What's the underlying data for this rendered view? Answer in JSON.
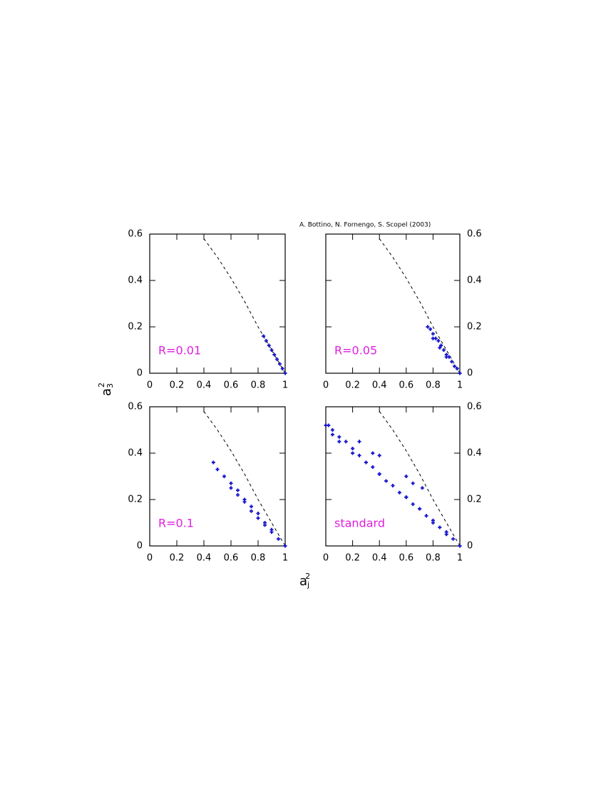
{
  "credit": "A. Bottino, N. Fornengo, S. Scopel (2003)",
  "x_label": {
    "text": "a",
    "sub": "j",
    "sup": "2"
  },
  "y_label": {
    "text": "a",
    "sub": "3",
    "sup": "2"
  },
  "chart_data": [
    {
      "type": "scatter",
      "annotation": "R=0.01",
      "color": "#1a1acc",
      "annotation_color": "#e020e0",
      "y_axis_side": "left",
      "xlim": [
        0,
        1
      ],
      "ylim": [
        0,
        0.6
      ],
      "xticks": [
        0,
        0.2,
        0.4,
        0.6,
        0.8,
        1
      ],
      "yticks": [
        0,
        0.2,
        0.4,
        0.6
      ],
      "x": [
        0.84,
        0.86,
        0.88,
        0.9,
        0.92,
        0.94,
        0.96,
        0.98,
        1.0
      ],
      "y": [
        0.16,
        0.14,
        0.12,
        0.1,
        0.08,
        0.06,
        0.04,
        0.02,
        0.0
      ],
      "curve": {
        "x": [
          0.4,
          0.5,
          0.6,
          0.7,
          0.8,
          0.85,
          0.9,
          0.95,
          1.0
        ],
        "y": [
          0.58,
          0.5,
          0.41,
          0.31,
          0.2,
          0.15,
          0.1,
          0.05,
          0.0
        ],
        "color": "#000000",
        "dashed": true
      }
    },
    {
      "type": "scatter",
      "annotation": "R=0.05",
      "color": "#1a1acc",
      "annotation_color": "#e020e0",
      "y_axis_side": "right",
      "xlim": [
        0,
        1
      ],
      "ylim": [
        0,
        0.6
      ],
      "xticks": [
        0,
        0.2,
        0.4,
        0.6,
        0.8,
        1
      ],
      "yticks": [
        0,
        0.2,
        0.4,
        0.6
      ],
      "x": [
        0.76,
        0.78,
        0.8,
        0.82,
        0.84,
        0.86,
        0.88,
        0.9,
        0.92,
        0.94,
        0.96,
        0.98,
        1.0,
        0.8,
        0.85,
        0.9
      ],
      "y": [
        0.2,
        0.19,
        0.17,
        0.15,
        0.14,
        0.12,
        0.1,
        0.08,
        0.07,
        0.05,
        0.03,
        0.02,
        0.0,
        0.15,
        0.11,
        0.07
      ],
      "curve": {
        "x": [
          0.4,
          0.5,
          0.6,
          0.7,
          0.8,
          0.85,
          0.9,
          0.95,
          1.0
        ],
        "y": [
          0.58,
          0.5,
          0.41,
          0.31,
          0.2,
          0.15,
          0.1,
          0.05,
          0.0
        ],
        "color": "#000000",
        "dashed": true
      }
    },
    {
      "type": "scatter",
      "annotation": "R=0.1",
      "color": "#1a1acc",
      "annotation_color": "#e020e0",
      "y_axis_side": "left",
      "xlim": [
        0,
        1
      ],
      "ylim": [
        0,
        0.6
      ],
      "xticks": [
        0,
        0.2,
        0.4,
        0.6,
        0.8,
        1
      ],
      "yticks": [
        0,
        0.2,
        0.4,
        0.6
      ],
      "x": [
        0.47,
        0.5,
        0.55,
        0.6,
        0.65,
        0.7,
        0.75,
        0.8,
        0.85,
        0.9,
        0.95,
        1.0,
        0.6,
        0.7,
        0.8,
        0.9,
        0.65,
        0.75,
        0.85
      ],
      "y": [
        0.36,
        0.33,
        0.3,
        0.27,
        0.24,
        0.2,
        0.17,
        0.14,
        0.1,
        0.07,
        0.03,
        0.0,
        0.25,
        0.19,
        0.12,
        0.06,
        0.22,
        0.15,
        0.09
      ],
      "curve": {
        "x": [
          0.4,
          0.5,
          0.6,
          0.7,
          0.8,
          0.85,
          0.9,
          0.95,
          1.0
        ],
        "y": [
          0.58,
          0.5,
          0.41,
          0.31,
          0.2,
          0.15,
          0.1,
          0.05,
          0.0
        ],
        "color": "#000000",
        "dashed": true
      }
    },
    {
      "type": "scatter",
      "annotation": "standard",
      "color": "#1a1acc",
      "annotation_color": "#e020e0",
      "y_axis_side": "right",
      "xlim": [
        0,
        1
      ],
      "ylim": [
        0,
        0.6
      ],
      "xticks": [
        0,
        0.2,
        0.4,
        0.6,
        0.8,
        1
      ],
      "yticks": [
        0,
        0.2,
        0.4,
        0.6
      ],
      "x": [
        0,
        0.02,
        0.05,
        0.1,
        0.15,
        0.2,
        0.25,
        0.3,
        0.35,
        0.4,
        0.45,
        0.5,
        0.55,
        0.6,
        0.65,
        0.7,
        0.75,
        0.8,
        0.85,
        0.9,
        0.95,
        1.0,
        0.05,
        0.1,
        0.2,
        0.3,
        0.4,
        0.5,
        0.6,
        0.7,
        0.8,
        0.9,
        0.25,
        0.35,
        0.4,
        0.6,
        0.65,
        0.72
      ],
      "y": [
        0.52,
        0.52,
        0.5,
        0.47,
        0.45,
        0.42,
        0.39,
        0.36,
        0.34,
        0.31,
        0.28,
        0.26,
        0.23,
        0.21,
        0.18,
        0.16,
        0.13,
        0.1,
        0.08,
        0.05,
        0.03,
        0.0,
        0.48,
        0.45,
        0.4,
        0.36,
        0.31,
        0.26,
        0.21,
        0.16,
        0.11,
        0.06,
        0.45,
        0.4,
        0.39,
        0.3,
        0.27,
        0.25
      ],
      "curve": {
        "x": [
          0.4,
          0.5,
          0.6,
          0.7,
          0.8,
          0.85,
          0.9,
          0.95,
          1.0
        ],
        "y": [
          0.58,
          0.5,
          0.41,
          0.31,
          0.2,
          0.15,
          0.1,
          0.05,
          0.0
        ],
        "color": "#000000",
        "dashed": true
      }
    }
  ]
}
